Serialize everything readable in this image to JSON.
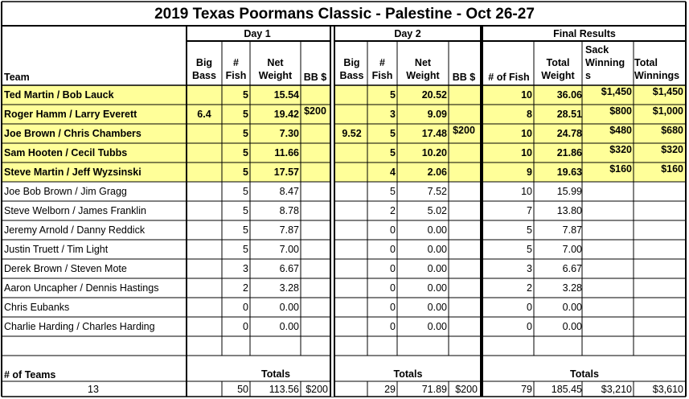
{
  "title": "2019 Texas Poormans Classic - Palestine - Oct 26-27",
  "groups": {
    "day1": "Day 1",
    "day2": "Day 2",
    "final": "Final Results"
  },
  "headers": {
    "team": "Team",
    "big_bass_l1": "Big",
    "big_bass_l2": "Bass",
    "fish_l1": "#",
    "fish_l2": "Fish",
    "net_l1": "Net",
    "net_l2": "Weight",
    "bb": "BB $",
    "num_fish": "# of Fish",
    "total_l1": "Total",
    "total_l2": "Weight",
    "sack_l1": "Sack",
    "sack_l2": "Winning",
    "sack_l3": "s",
    "totalwin_l1": "Total",
    "totalwin_l2": "Winnings"
  },
  "rows": [
    {
      "team": "Ted Martin / Bob Lauck",
      "highlight": true,
      "d1_big": "",
      "d1_fish": "5",
      "d1_net": "15.54",
      "d1_bb": "",
      "d2_big": "",
      "d2_fish": "5",
      "d2_net": "20.52",
      "d2_bb": "",
      "fish": "10",
      "weight": "36.06",
      "sack": "$1,450",
      "win": "$1,450"
    },
    {
      "team": "Roger Hamm / Larry Everett",
      "highlight": true,
      "d1_big": "6.4",
      "d1_fish": "5",
      "d1_net": "19.42",
      "d1_bb": "$200",
      "d2_big": "",
      "d2_fish": "3",
      "d2_net": "9.09",
      "d2_bb": "",
      "fish": "8",
      "weight": "28.51",
      "sack": "$800",
      "win": "$1,000"
    },
    {
      "team": "Joe Brown / Chris Chambers",
      "highlight": true,
      "d1_big": "",
      "d1_fish": "5",
      "d1_net": "7.30",
      "d1_bb": "",
      "d2_big": "9.52",
      "d2_fish": "5",
      "d2_net": "17.48",
      "d2_bb": "$200",
      "fish": "10",
      "weight": "24.78",
      "sack": "$480",
      "win": "$680"
    },
    {
      "team": "Sam Hooten / Cecil Tubbs",
      "highlight": true,
      "d1_big": "",
      "d1_fish": "5",
      "d1_net": "11.66",
      "d1_bb": "",
      "d2_big": "",
      "d2_fish": "5",
      "d2_net": "10.20",
      "d2_bb": "",
      "fish": "10",
      "weight": "21.86",
      "sack": "$320",
      "win": "$320"
    },
    {
      "team": "Steve Martin / Jeff Wyzsinski",
      "highlight": true,
      "d1_big": "",
      "d1_fish": "5",
      "d1_net": "17.57",
      "d1_bb": "",
      "d2_big": "",
      "d2_fish": "4",
      "d2_net": "2.06",
      "d2_bb": "",
      "fish": "9",
      "weight": "19.63",
      "sack": "$160",
      "win": "$160"
    },
    {
      "team": "Joe Bob Brown / Jim Gragg",
      "highlight": false,
      "d1_big": "",
      "d1_fish": "5",
      "d1_net": "8.47",
      "d1_bb": "",
      "d2_big": "",
      "d2_fish": "5",
      "d2_net": "7.52",
      "d2_bb": "",
      "fish": "10",
      "weight": "15.99",
      "sack": "",
      "win": ""
    },
    {
      "team": "Steve Welborn / James Franklin",
      "highlight": false,
      "d1_big": "",
      "d1_fish": "5",
      "d1_net": "8.78",
      "d1_bb": "",
      "d2_big": "",
      "d2_fish": "2",
      "d2_net": "5.02",
      "d2_bb": "",
      "fish": "7",
      "weight": "13.80",
      "sack": "",
      "win": ""
    },
    {
      "team": "Jeremy Arnold / Danny Reddick",
      "highlight": false,
      "d1_big": "",
      "d1_fish": "5",
      "d1_net": "7.87",
      "d1_bb": "",
      "d2_big": "",
      "d2_fish": "0",
      "d2_net": "0.00",
      "d2_bb": "",
      "fish": "5",
      "weight": "7.87",
      "sack": "",
      "win": ""
    },
    {
      "team": "Justin Truett / Tim Light",
      "highlight": false,
      "d1_big": "",
      "d1_fish": "5",
      "d1_net": "7.00",
      "d1_bb": "",
      "d2_big": "",
      "d2_fish": "0",
      "d2_net": "0.00",
      "d2_bb": "",
      "fish": "5",
      "weight": "7.00",
      "sack": "",
      "win": ""
    },
    {
      "team": "Derek Brown / Steven Mote",
      "highlight": false,
      "d1_big": "",
      "d1_fish": "3",
      "d1_net": "6.67",
      "d1_bb": "",
      "d2_big": "",
      "d2_fish": "0",
      "d2_net": "0.00",
      "d2_bb": "",
      "fish": "3",
      "weight": "6.67",
      "sack": "",
      "win": ""
    },
    {
      "team": "Aaron Uncapher / Dennis Hastings",
      "highlight": false,
      "d1_big": "",
      "d1_fish": "2",
      "d1_net": "3.28",
      "d1_bb": "",
      "d2_big": "",
      "d2_fish": "0",
      "d2_net": "0.00",
      "d2_bb": "",
      "fish": "2",
      "weight": "3.28",
      "sack": "",
      "win": ""
    },
    {
      "team": "Chris Eubanks",
      "highlight": false,
      "d1_big": "",
      "d1_fish": "0",
      "d1_net": "0.00",
      "d1_bb": "",
      "d2_big": "",
      "d2_fish": "0",
      "d2_net": "0.00",
      "d2_bb": "",
      "fish": "0",
      "weight": "0.00",
      "sack": "",
      "win": ""
    },
    {
      "team": "Charlie Harding / Charles Harding",
      "highlight": false,
      "d1_big": "",
      "d1_fish": "0",
      "d1_net": "0.00",
      "d1_bb": "",
      "d2_big": "",
      "d2_fish": "0",
      "d2_net": "0.00",
      "d2_bb": "",
      "fish": "0",
      "weight": "0.00",
      "sack": "",
      "win": ""
    }
  ],
  "footer": {
    "teams_label": "# of Teams",
    "teams_count": "13",
    "totals_label": "Totals",
    "d1_fish": "50",
    "d1_net": "113.56",
    "d1_bb": "$200",
    "d2_fish": "29",
    "d2_net": "71.89",
    "d2_bb": "$200",
    "fish": "79",
    "weight": "185.45",
    "sack": "$3,210",
    "win": "$3,610"
  },
  "colors": {
    "highlight": "#ffff99",
    "grid": "#000000",
    "gap": "#ffffff"
  }
}
